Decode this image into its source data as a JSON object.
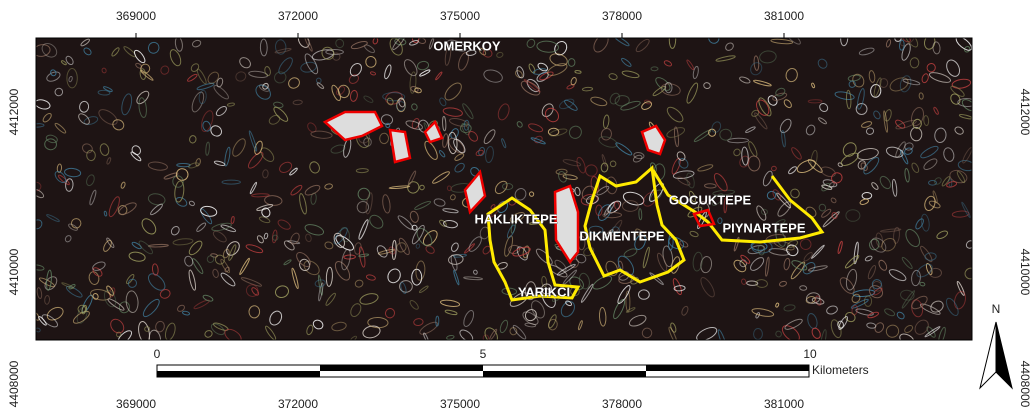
{
  "map": {
    "top_ticks": [
      "369000",
      "372000",
      "375000",
      "378000",
      "381000"
    ],
    "bottom_ticks": [
      "369000",
      "372000",
      "375000",
      "378000",
      "381000"
    ],
    "left_ticks": [
      "4412000",
      "4410000",
      "4408000"
    ],
    "right_ticks": [
      "4412000",
      "4410000",
      "4408000"
    ],
    "places": [
      "OMERKOY",
      "HAKLIKTEPE",
      "YARIKCI",
      "DIKMENTEPE",
      "GOCUKTEPE",
      "PIYNARTEPE"
    ],
    "scale_bar": {
      "labels": [
        "0",
        "5",
        "10"
      ],
      "unit": "Kilometers"
    },
    "north": "N"
  }
}
